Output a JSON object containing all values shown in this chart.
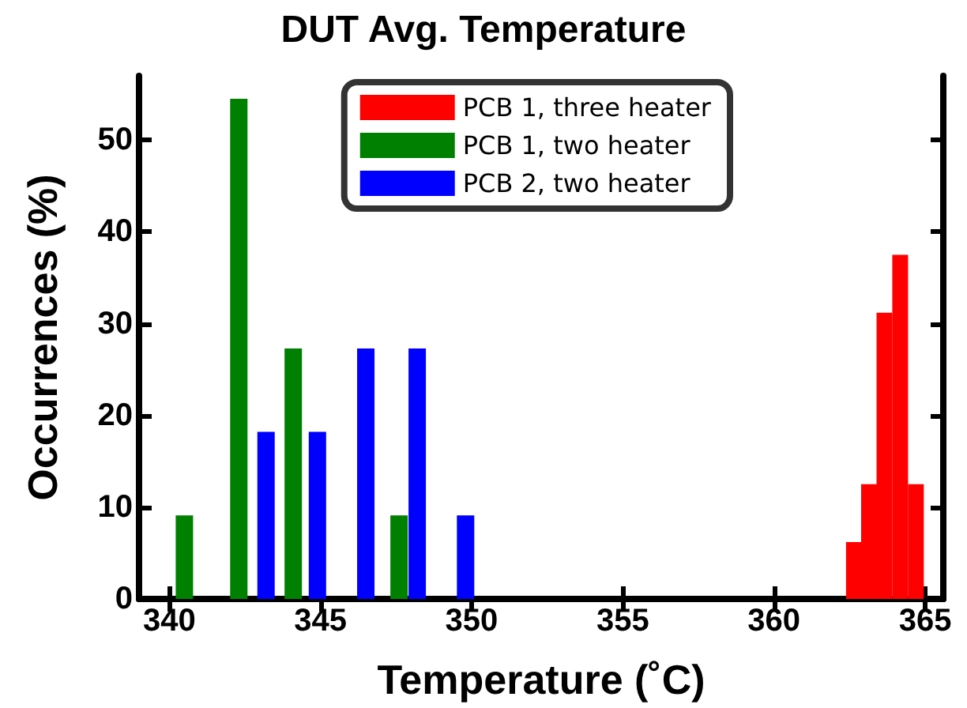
{
  "chart_data": {
    "type": "bar",
    "title": "DUT Avg. Temperature",
    "xlabel": "Temperature (˚C)",
    "ylabel": "Occurrences (%)",
    "xlim": [
      339,
      365.6
    ],
    "xticks": [
      340,
      345,
      350,
      355,
      360,
      365
    ],
    "ylim": [
      0,
      57
    ],
    "yticks": [
      0,
      10,
      20,
      30,
      40,
      50
    ],
    "grid": false,
    "legend": "top right",
    "series": [
      {
        "name": "PCB 1, three heater",
        "color": "#ff0000",
        "x": [
          362.67,
          363.17,
          363.68,
          364.2,
          364.72
        ],
        "values": [
          6.2,
          12.5,
          31.2,
          37.5,
          12.5
        ]
      },
      {
        "name": "PCB 1, two heater",
        "color": "#008000",
        "x": [
          340.5,
          342.3,
          344.1,
          347.6
        ],
        "values": [
          9.1,
          54.5,
          27.3,
          9.1
        ]
      },
      {
        "name": "PCB 2, two heater",
        "color": "#0000ff",
        "x": [
          343.2,
          344.9,
          346.5,
          348.2,
          349.8
        ],
        "values": [
          18.2,
          18.2,
          27.3,
          27.3,
          9.1
        ]
      }
    ]
  }
}
